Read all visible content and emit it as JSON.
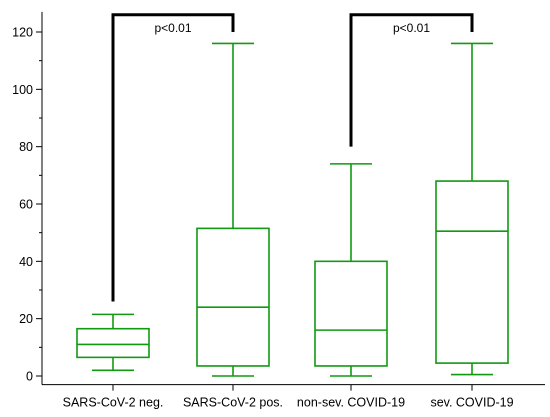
{
  "chart_data": {
    "type": "box",
    "title": "",
    "xlabel": "",
    "ylabel": "",
    "ylim": [
      -3,
      127
    ],
    "yticks": [
      0,
      20,
      40,
      60,
      80,
      100,
      120
    ],
    "ytick_labels": [
      "0",
      "20",
      "40",
      "60",
      "80",
      "100",
      "120"
    ],
    "categories": [
      "SARS-CoV-2 neg.",
      "SARS-CoV-2 pos.",
      "non-sev. COVID-19",
      "sev. COVID-19"
    ],
    "boxes": [
      {
        "category": "SARS-CoV-2 neg.",
        "min": 2,
        "q1": 6.5,
        "median": 11,
        "q3": 16.5,
        "max": 21.5
      },
      {
        "category": "SARS-CoV-2 pos.",
        "min": 0,
        "q1": 3.5,
        "median": 24,
        "q3": 51.5,
        "max": 116
      },
      {
        "category": "non-sev. COVID-19",
        "min": 0,
        "q1": 3.5,
        "median": 16,
        "q3": 40,
        "max": 74
      },
      {
        "category": "sev. COVID-19",
        "min": 0.5,
        "q1": 4.5,
        "median": 50.5,
        "q3": 68,
        "max": 116
      }
    ],
    "annotations": [
      {
        "label": "p<0.01",
        "from": "SARS-CoV-2 neg.",
        "to": "SARS-CoV-2 pos.",
        "left_end": 26,
        "right_end": 120,
        "y": 126
      },
      {
        "label": "p<0.01",
        "from": "non-sev. COVID-19",
        "to": "sev. COVID-19",
        "left_end": 80,
        "right_end": 120,
        "y": 126
      }
    ],
    "colors": {
      "box": "#119911",
      "bracket": "#000000",
      "axis": "#000000"
    },
    "grid": false
  }
}
